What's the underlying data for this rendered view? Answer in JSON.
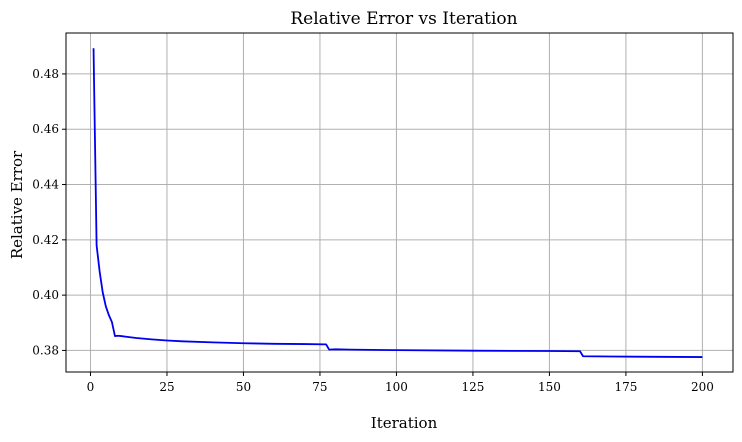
{
  "chart_data": {
    "type": "line",
    "title": "Relative Error vs Iteration",
    "xlabel": "Iteration",
    "ylabel": "Relative Error",
    "xlim": [
      -8,
      210
    ],
    "ylim": [
      0.3722,
      0.4948
    ],
    "xticks": [
      0,
      25,
      50,
      75,
      100,
      125,
      150,
      175,
      200
    ],
    "xtick_labels": [
      "0",
      "25",
      "50",
      "75",
      "100",
      "125",
      "150",
      "175",
      "200"
    ],
    "yticks": [
      0.38,
      0.4,
      0.42,
      0.44,
      0.46,
      0.48
    ],
    "ytick_labels": [
      "0.38",
      "0.40",
      "0.42",
      "0.44",
      "0.46",
      "0.48"
    ],
    "grid": true,
    "series": [
      {
        "color": "#0000ee",
        "x": [
          1,
          2,
          3,
          4,
          5,
          6,
          7,
          8,
          9,
          10,
          12,
          15,
          20,
          25,
          30,
          40,
          50,
          60,
          70,
          77,
          78,
          80,
          85,
          100,
          125,
          150,
          160,
          161,
          170,
          185,
          200
        ],
        "y": [
          0.4893,
          0.418,
          0.4085,
          0.401,
          0.396,
          0.3928,
          0.3903,
          0.3852,
          0.3853,
          0.3852,
          0.3849,
          0.3845,
          0.384,
          0.3836,
          0.3833,
          0.3829,
          0.3826,
          0.3824,
          0.3823,
          0.3822,
          0.3803,
          0.3804,
          0.3803,
          0.3801,
          0.3799,
          0.3798,
          0.3797,
          0.3779,
          0.3778,
          0.3777,
          0.3776
        ]
      }
    ]
  }
}
